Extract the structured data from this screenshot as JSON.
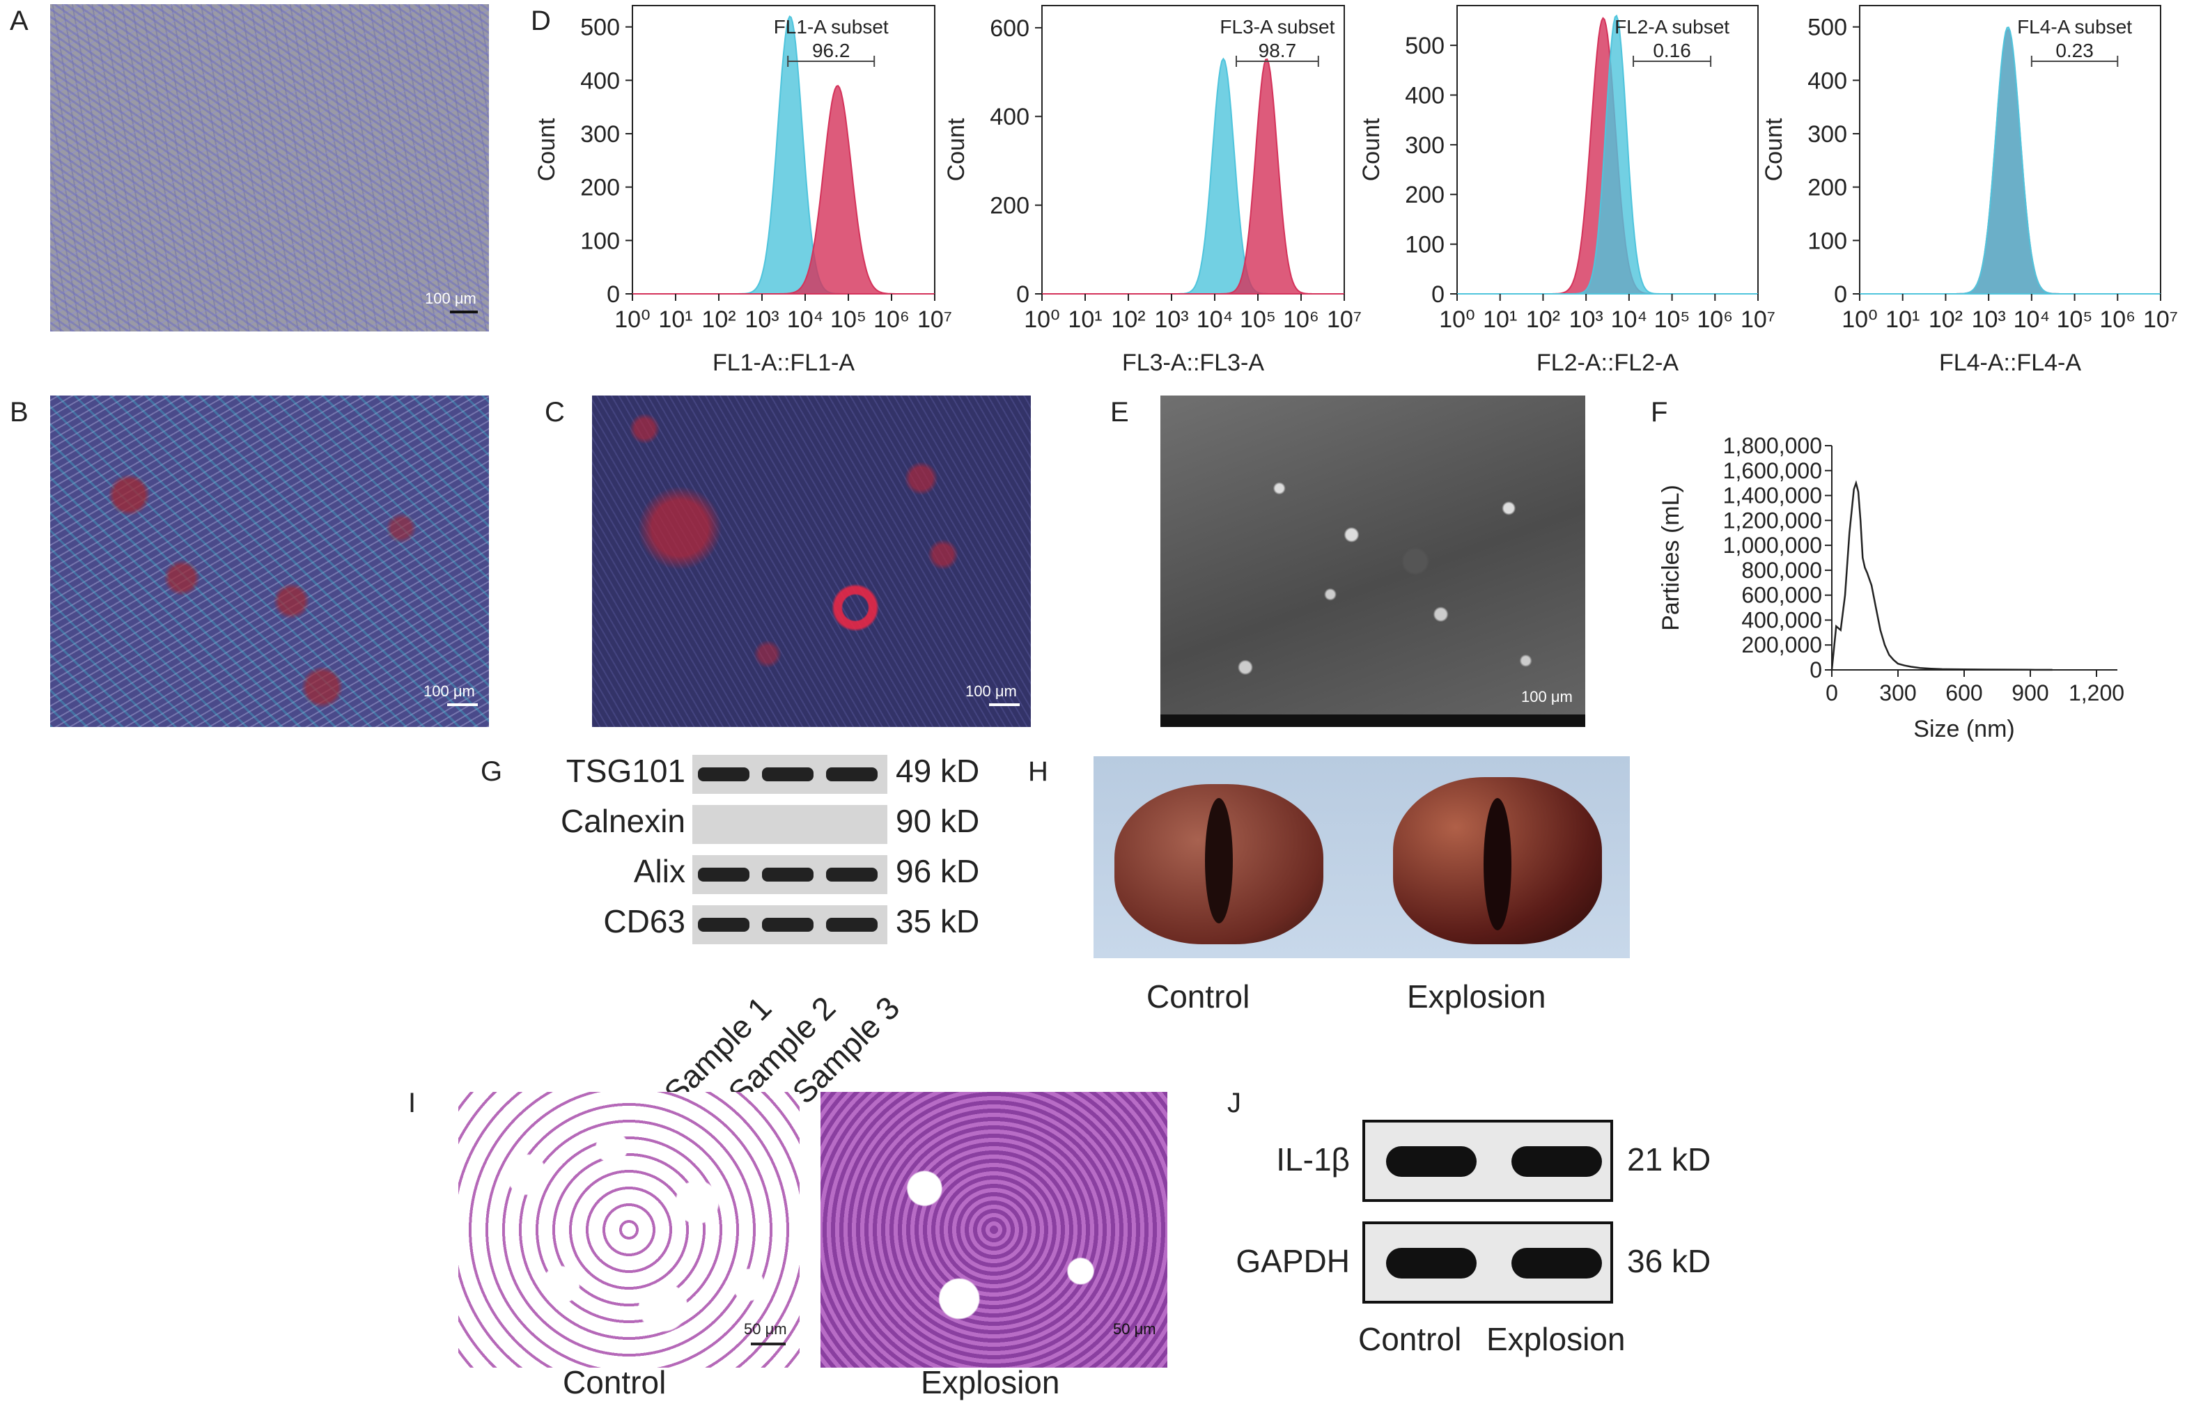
{
  "panels": {
    "A": {
      "label": "A",
      "scale": "100 μm"
    },
    "B": {
      "label": "B",
      "scale": "100 μm"
    },
    "C": {
      "label": "C",
      "scale": "100 μm"
    },
    "D": {
      "label": "D"
    },
    "E": {
      "label": "E",
      "scale": "100 μm"
    },
    "F": {
      "label": "F"
    },
    "G": {
      "label": "G"
    },
    "H": {
      "label": "H",
      "captions": [
        "Control",
        "Explosion"
      ]
    },
    "I": {
      "label": "I",
      "captions": [
        "Control",
        "Explosion"
      ],
      "scale": "50 μm"
    },
    "J": {
      "label": "J"
    }
  },
  "chart_data": [
    {
      "type": "area",
      "id": "FL1",
      "xlabel": "FL1-A::FL1-A",
      "ylabel": "Count",
      "xticks": [
        "10⁰",
        "10¹",
        "10²",
        "10³",
        "10⁴",
        "10⁵",
        "10⁶",
        "10⁷"
      ],
      "xlim": [
        0,
        7
      ],
      "yticks": [
        0,
        100,
        200,
        300,
        400,
        500
      ],
      "ylim": [
        0,
        540
      ],
      "gate": {
        "name": "FL1-A subset",
        "value": "96.2",
        "range": [
          3.6,
          5.6
        ]
      },
      "series": [
        {
          "color": "#4fc4dc",
          "peak_log": 3.65,
          "peak_count": 520,
          "width": 0.28
        },
        {
          "color": "#d4325a",
          "peak_log": 4.75,
          "peak_count": 390,
          "width": 0.32
        }
      ]
    },
    {
      "type": "area",
      "id": "FL3",
      "xlabel": "FL3-A::FL3-A",
      "ylabel": "Count",
      "xticks": [
        "10⁰",
        "10¹",
        "10²",
        "10³",
        "10⁴",
        "10⁵",
        "10⁶",
        "10⁷"
      ],
      "xlim": [
        0,
        7
      ],
      "yticks": [
        0,
        200,
        400,
        600
      ],
      "ylim": [
        0,
        650
      ],
      "gate": {
        "name": "FL3-A subset",
        "value": "98.7",
        "range": [
          4.5,
          6.4
        ]
      },
      "series": [
        {
          "color": "#4fc4dc",
          "peak_log": 4.2,
          "peak_count": 530,
          "width": 0.25
        },
        {
          "color": "#d4325a",
          "peak_log": 5.2,
          "peak_count": 530,
          "width": 0.25
        }
      ]
    },
    {
      "type": "area",
      "id": "FL2",
      "xlabel": "FL2-A::FL2-A",
      "ylabel": "Count",
      "xticks": [
        "10⁰",
        "10¹",
        "10²",
        "10³",
        "10⁴",
        "10⁵",
        "10⁶",
        "10⁷"
      ],
      "xlim": [
        0,
        7
      ],
      "yticks": [
        0,
        100,
        200,
        300,
        400,
        500
      ],
      "ylim": [
        0,
        580
      ],
      "gate": {
        "name": "FL2-A subset",
        "value": "0.16",
        "range": [
          4.1,
          5.9
        ]
      },
      "series": [
        {
          "color": "#d4325a",
          "peak_log": 3.4,
          "peak_count": 555,
          "width": 0.28
        },
        {
          "color": "#4fc4dc",
          "peak_log": 3.7,
          "peak_count": 560,
          "width": 0.24
        }
      ]
    },
    {
      "type": "area",
      "id": "FL4",
      "xlabel": "FL4-A::FL4-A",
      "ylabel": "Count",
      "xticks": [
        "10⁰",
        "10¹",
        "10²",
        "10³",
        "10⁴",
        "10⁵",
        "10⁶",
        "10⁷"
      ],
      "xlim": [
        0,
        7
      ],
      "yticks": [
        0,
        100,
        200,
        300,
        400,
        500
      ],
      "ylim": [
        0,
        540
      ],
      "gate": {
        "name": "FL4-A subset",
        "value": "0.23",
        "range": [
          4.0,
          6.0
        ]
      },
      "series": [
        {
          "color": "#d4325a",
          "peak_log": 3.45,
          "peak_count": 495,
          "width": 0.28
        },
        {
          "color": "#4fc4dc",
          "peak_log": 3.45,
          "peak_count": 500,
          "width": 0.28
        }
      ]
    },
    {
      "type": "line",
      "id": "NTA",
      "xlabel": "Size (nm)",
      "ylabel": "Particles (mL)",
      "xticks": [
        "0",
        "300",
        "600",
        "900",
        "1,200"
      ],
      "xtick_values": [
        0,
        300,
        600,
        900,
        1200
      ],
      "xlim": [
        0,
        1200
      ],
      "yticks": [
        "0",
        "200,000",
        "400,000",
        "600,000",
        "800,000",
        "1,000,000",
        "1,200,000",
        "1,400,000",
        "1,600,000",
        "1,800,000"
      ],
      "ytick_values": [
        0,
        200000,
        400000,
        600000,
        800000,
        1000000,
        1200000,
        1400000,
        1600000,
        1800000
      ],
      "ylim": [
        0,
        1800000
      ],
      "x": [
        0,
        20,
        40,
        60,
        80,
        100,
        110,
        120,
        130,
        140,
        150,
        160,
        170,
        180,
        200,
        220,
        240,
        260,
        280,
        300,
        330,
        360,
        400,
        450,
        500,
        600,
        700,
        800,
        900,
        1000
      ],
      "y": [
        0,
        350000,
        320000,
        600000,
        1100000,
        1450000,
        1500000,
        1430000,
        1200000,
        900000,
        820000,
        780000,
        730000,
        680000,
        500000,
        320000,
        200000,
        120000,
        80000,
        50000,
        35000,
        25000,
        15000,
        10000,
        6000,
        4000,
        3000,
        2000,
        1000,
        500
      ]
    }
  ],
  "western_g": {
    "rows": [
      {
        "name": "TSG101",
        "kd": "49 kD"
      },
      {
        "name": "Calnexin",
        "kd": "90 kD"
      },
      {
        "name": "Alix",
        "kd": "96 kD"
      },
      {
        "name": "CD63",
        "kd": "35 kD"
      }
    ],
    "samples": [
      "Sample 1",
      "Sample 2",
      "Sample 3"
    ]
  },
  "western_j": {
    "rows": [
      {
        "name": "IL-1β",
        "kd": "21 kD"
      },
      {
        "name": "GAPDH",
        "kd": "36 kD"
      }
    ],
    "samples": [
      "Control",
      "Explosion"
    ]
  }
}
